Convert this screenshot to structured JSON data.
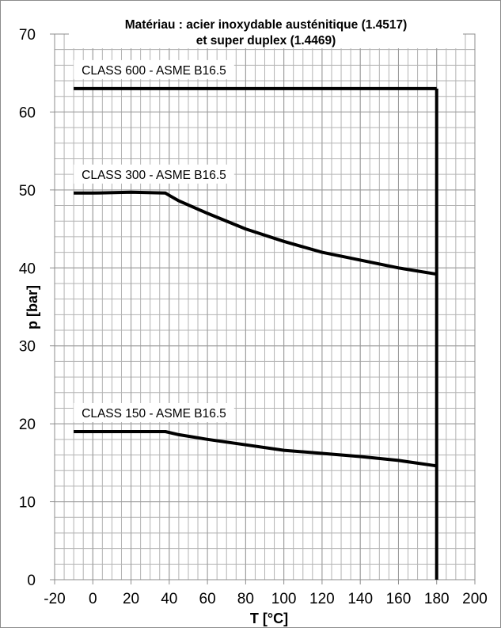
{
  "chart_data": {
    "type": "line",
    "title": [
      "Matériau : acier inoxydable austénitique (1.4517)",
      "et super duplex (1.4469)"
    ],
    "xlabel": "T [°C]",
    "ylabel": "p [bar]",
    "xlim": [
      -20,
      200
    ],
    "ylim": [
      0,
      70
    ],
    "xticks": [
      -20,
      0,
      20,
      40,
      60,
      80,
      100,
      120,
      140,
      160,
      180,
      200
    ],
    "yticks": [
      0,
      10,
      20,
      30,
      40,
      50,
      60,
      70
    ],
    "grid": true,
    "series": [
      {
        "name": "CLASS 600 - ASME B16.5",
        "color": "#000000",
        "x": [
          -10,
          180
        ],
        "y": [
          63,
          63
        ]
      },
      {
        "name": "CLASS 300 - ASME B16.5",
        "color": "#000000",
        "x": [
          -10,
          0,
          20,
          38,
          40,
          45,
          60,
          80,
          100,
          120,
          140,
          160,
          180
        ],
        "y": [
          49.6,
          49.6,
          49.7,
          49.6,
          49.3,
          48.6,
          47.0,
          45.0,
          43.4,
          42.0,
          41.0,
          40.0,
          39.2
        ]
      },
      {
        "name": "CLASS 150 - ASME B16.5",
        "color": "#000000",
        "x": [
          -10,
          0,
          20,
          38,
          45,
          60,
          80,
          100,
          120,
          140,
          160,
          180
        ],
        "y": [
          19.0,
          19.0,
          19.0,
          19.0,
          18.6,
          18.0,
          17.3,
          16.6,
          16.2,
          15.8,
          15.3,
          14.6
        ]
      },
      {
        "name": "",
        "color": "#000000",
        "x": [
          180,
          180
        ],
        "y": [
          63,
          0
        ]
      }
    ]
  }
}
